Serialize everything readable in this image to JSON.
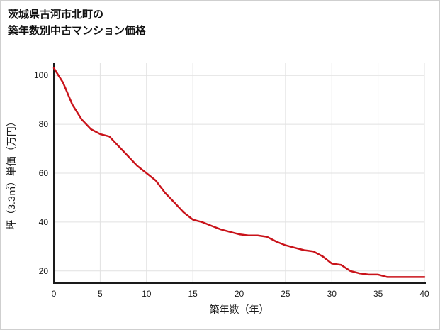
{
  "title": {
    "line1": "茨城県古河市北町の",
    "line2": "築年数別中古マンション価格"
  },
  "chart_data": {
    "type": "line",
    "title": "茨城県古河市北町の築年数別中古マンション価格",
    "xlabel": "築年数（年）",
    "ylabel": "坪（3.3㎡）単価（万円）",
    "x": [
      0,
      1,
      2,
      3,
      4,
      5,
      6,
      7,
      8,
      9,
      10,
      11,
      12,
      13,
      14,
      15,
      16,
      17,
      18,
      19,
      20,
      21,
      22,
      23,
      24,
      25,
      26,
      27,
      28,
      29,
      30,
      31,
      32,
      33,
      34,
      35,
      36,
      37,
      38,
      39,
      40
    ],
    "values": [
      103,
      97,
      88,
      82,
      78,
      76,
      75,
      71,
      67,
      63,
      60,
      57,
      52,
      48,
      44,
      41,
      40,
      38.5,
      37,
      36,
      35,
      34.5,
      34.5,
      34,
      32,
      30.5,
      29.5,
      28.5,
      28,
      26,
      23,
      22.5,
      20,
      19,
      18.5,
      18.5,
      17.5,
      17.5,
      17.5,
      17.5,
      17.5
    ],
    "xlim": [
      0,
      40
    ],
    "ylim": [
      15,
      105
    ],
    "xticks": [
      0,
      5,
      10,
      15,
      20,
      25,
      30,
      35,
      40
    ],
    "yticks": [
      20,
      40,
      60,
      80,
      100
    ],
    "line_color": "#c9131a",
    "grid_color": "#e1e1e1",
    "axis_color": "#1a1a1a",
    "tick_label_color": "#1a1a1a",
    "grid": true,
    "legend_position": "none"
  }
}
